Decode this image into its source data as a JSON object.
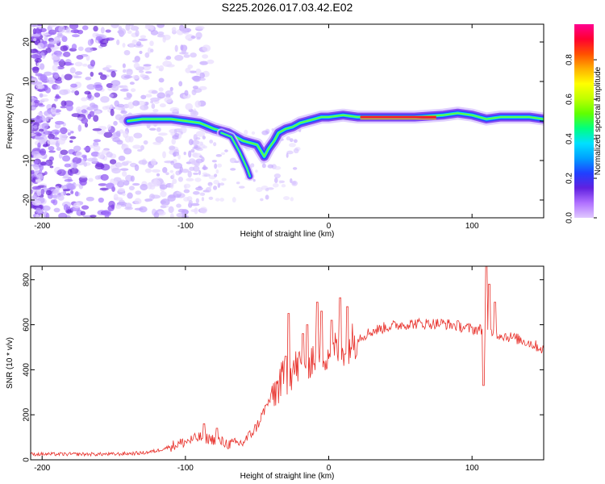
{
  "title": "S225.2026.017.03.42.E02",
  "colors": {
    "snr_line": "#e8312b",
    "ridge": "#ff2020",
    "axis": "#000000",
    "colorbar": [
      "#e0c8ff",
      "#b070ff",
      "#6020e0",
      "#2040ff",
      "#00a0ff",
      "#00e0ff",
      "#00ff80",
      "#60ff00",
      "#c0ff00",
      "#ffff00",
      "#ffb000",
      "#ff5000",
      "#ff0030",
      "#ff0090"
    ]
  },
  "chart_data": [
    {
      "type": "heatmap",
      "name": "spectrogram",
      "xlabel": "Height of straight line (km)",
      "ylabel": "Frequency (Hz)",
      "xlim": [
        -208,
        150
      ],
      "ylim": [
        -24.5,
        24.5
      ],
      "xticks": [
        -200,
        -100,
        0,
        100
      ],
      "yticks": [
        -20,
        -10,
        0,
        10,
        20
      ],
      "colorbar": {
        "label": "Normalized spectral amplitude",
        "range": [
          0,
          0.98
        ],
        "ticks": [
          0.0,
          0.2,
          0.4,
          0.6,
          0.8
        ]
      },
      "ridge_path": [
        [
          -140,
          0
        ],
        [
          -130,
          0.5
        ],
        [
          -110,
          0.5
        ],
        [
          -100,
          0
        ],
        [
          -90,
          -0.5
        ],
        [
          -80,
          -2
        ],
        [
          -70,
          -3
        ],
        [
          -60,
          -5
        ],
        [
          -50,
          -6
        ],
        [
          -45,
          -9
        ],
        [
          -42,
          -7
        ],
        [
          -38,
          -5
        ],
        [
          -35,
          -3
        ],
        [
          -30,
          -2
        ],
        [
          -25,
          -1.5
        ],
        [
          -20,
          -0.5
        ],
        [
          -15,
          0
        ],
        [
          -10,
          0.5
        ],
        [
          -5,
          1
        ],
        [
          0,
          1
        ],
        [
          10,
          1.5
        ],
        [
          20,
          1
        ],
        [
          40,
          1
        ],
        [
          60,
          1
        ],
        [
          80,
          1.5
        ],
        [
          90,
          2
        ],
        [
          100,
          1.5
        ],
        [
          110,
          0.5
        ],
        [
          120,
          1
        ],
        [
          140,
          1
        ],
        [
          150,
          0.5
        ]
      ],
      "side_branch": [
        [
          -75,
          -3
        ],
        [
          -68,
          -4
        ],
        [
          -62,
          -8
        ],
        [
          -57,
          -12
        ],
        [
          -55,
          -14
        ]
      ],
      "core_segment": [
        [
          22,
          1
        ],
        [
          75,
          1
        ]
      ]
    },
    {
      "type": "line",
      "name": "snr",
      "xlabel": "Height of straight line (km)",
      "ylabel": "SNR (10 * v/v)",
      "xlim": [
        -208,
        150
      ],
      "ylim": [
        0,
        860
      ],
      "xticks": [
        -200,
        -100,
        0,
        100
      ],
      "yticks": [
        0,
        200,
        400,
        600,
        800
      ],
      "envelope": [
        [
          -208,
          25
        ],
        [
          -180,
          25
        ],
        [
          -150,
          25
        ],
        [
          -130,
          30
        ],
        [
          -120,
          40
        ],
        [
          -110,
          60
        ],
        [
          -100,
          80
        ],
        [
          -90,
          100
        ],
        [
          -80,
          90
        ],
        [
          -70,
          70
        ],
        [
          -60,
          75
        ],
        [
          -55,
          110
        ],
        [
          -50,
          150
        ],
        [
          -45,
          220
        ],
        [
          -40,
          280
        ],
        [
          -35,
          330
        ],
        [
          -30,
          370
        ],
        [
          -25,
          400
        ],
        [
          -20,
          420
        ],
        [
          -15,
          440
        ],
        [
          -10,
          460
        ],
        [
          -5,
          470
        ],
        [
          0,
          480
        ],
        [
          10,
          500
        ],
        [
          20,
          540
        ],
        [
          30,
          570
        ],
        [
          40,
          590
        ],
        [
          50,
          600
        ],
        [
          60,
          605
        ],
        [
          70,
          605
        ],
        [
          80,
          605
        ],
        [
          90,
          595
        ],
        [
          100,
          580
        ],
        [
          105,
          580
        ],
        [
          110,
          570
        ],
        [
          120,
          555
        ],
        [
          130,
          540
        ],
        [
          140,
          520
        ],
        [
          150,
          490
        ]
      ],
      "spikes": [
        [
          -87,
          160
        ],
        [
          -78,
          140
        ],
        [
          -30,
          460
        ],
        [
          -28,
          650
        ],
        [
          -18,
          560
        ],
        [
          -15,
          600
        ],
        [
          -8,
          700
        ],
        [
          -5,
          660
        ],
        [
          2,
          620
        ],
        [
          8,
          720
        ],
        [
          13,
          680
        ],
        [
          108,
          330
        ],
        [
          110,
          860
        ],
        [
          112,
          780
        ],
        [
          116,
          700
        ]
      ]
    }
  ]
}
